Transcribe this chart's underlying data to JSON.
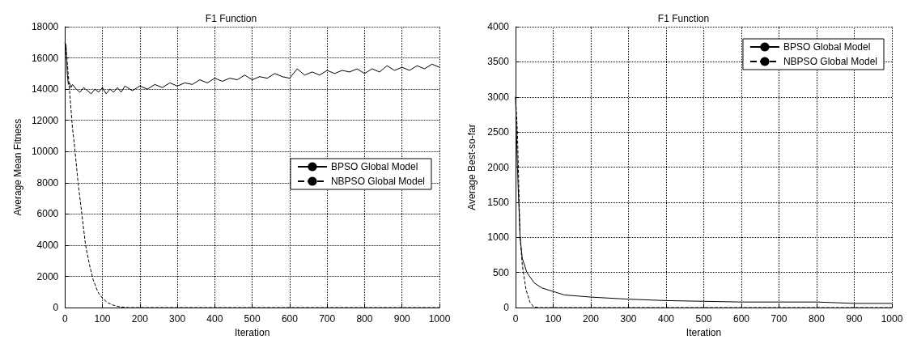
{
  "chart_data": [
    {
      "type": "line",
      "title": "F1 Function",
      "xlabel": "Iteration",
      "ylabel": "Average Mean Fitness",
      "xlim": [
        0,
        1000
      ],
      "ylim": [
        0,
        18000
      ],
      "xticks": [
        0,
        100,
        200,
        300,
        400,
        500,
        600,
        700,
        800,
        900,
        1000
      ],
      "yticks": [
        0,
        2000,
        4000,
        6000,
        8000,
        10000,
        12000,
        14000,
        16000,
        18000
      ],
      "grid": true,
      "legend": "right",
      "series": [
        {
          "name": "BPSO Global Model",
          "color": "#000000",
          "line_style": "solid",
          "x": [
            0,
            3,
            6,
            9,
            12,
            16,
            20,
            30,
            40,
            50,
            60,
            70,
            80,
            90,
            100,
            110,
            120,
            130,
            140,
            150,
            160,
            180,
            200,
            220,
            240,
            260,
            280,
            300,
            320,
            340,
            360,
            380,
            400,
            420,
            440,
            460,
            480,
            500,
            520,
            540,
            560,
            580,
            600,
            620,
            640,
            660,
            680,
            700,
            720,
            740,
            760,
            780,
            800,
            820,
            840,
            860,
            880,
            900,
            920,
            940,
            960,
            980,
            1000
          ],
          "values": [
            17000,
            16800,
            15000,
            14300,
            14400,
            14100,
            14300,
            14000,
            13800,
            14100,
            13900,
            13700,
            14000,
            13800,
            14100,
            13700,
            14000,
            13800,
            14100,
            13800,
            14200,
            13900,
            14200,
            14000,
            14300,
            14100,
            14400,
            14200,
            14400,
            14300,
            14600,
            14400,
            14700,
            14500,
            14700,
            14600,
            14900,
            14600,
            14800,
            14700,
            15000,
            14800,
            14700,
            15300,
            14900,
            15100,
            14900,
            15200,
            15000,
            15200,
            15100,
            15300,
            15000,
            15300,
            15100,
            15500,
            15200,
            15400,
            15200,
            15500,
            15300,
            15600,
            15400
          ]
        },
        {
          "name": "NBPSO Global Model",
          "color": "#000000",
          "line_style": "dashed",
          "x": [
            0,
            5,
            12,
            20,
            25,
            35,
            45,
            55,
            65,
            75,
            88,
            100,
            115,
            130,
            150,
            170,
            200,
            400,
            600,
            800,
            1000
          ],
          "values": [
            17000,
            16000,
            14000,
            11500,
            10500,
            8000,
            6000,
            4000,
            2800,
            1800,
            1000,
            600,
            300,
            150,
            30,
            0,
            0,
            0,
            0,
            0,
            0
          ]
        }
      ]
    },
    {
      "type": "line",
      "title": "F1 Function",
      "xlabel": "Iteration",
      "ylabel": "Average Best-so-far",
      "xlim": [
        0,
        1000
      ],
      "ylim": [
        0,
        4000
      ],
      "xticks": [
        0,
        100,
        200,
        300,
        400,
        500,
        600,
        700,
        800,
        900,
        1000
      ],
      "yticks": [
        0,
        500,
        1000,
        1500,
        2000,
        2500,
        3000,
        3500,
        4000
      ],
      "grid": true,
      "legend": "top right",
      "series": [
        {
          "name": "BPSO Global Model",
          "color": "#000000",
          "line_style": "solid",
          "x": [
            0,
            5,
            12,
            18,
            30,
            50,
            70,
            100,
            130,
            200,
            300,
            400,
            500,
            600,
            700,
            800,
            900,
            1000
          ],
          "values": [
            3000,
            2000,
            1000,
            700,
            500,
            350,
            280,
            230,
            180,
            150,
            120,
            100,
            90,
            80,
            80,
            80,
            60,
            60
          ]
        },
        {
          "name": "NBPSO Global Model",
          "color": "#000000",
          "line_style": "dashed",
          "x": [
            0,
            5,
            12,
            18,
            28,
            38,
            48,
            60,
            200,
            400,
            600,
            800,
            1000
          ],
          "values": [
            3000,
            2500,
            1000,
            600,
            250,
            80,
            10,
            0,
            0,
            0,
            0,
            0,
            0
          ]
        }
      ]
    }
  ]
}
